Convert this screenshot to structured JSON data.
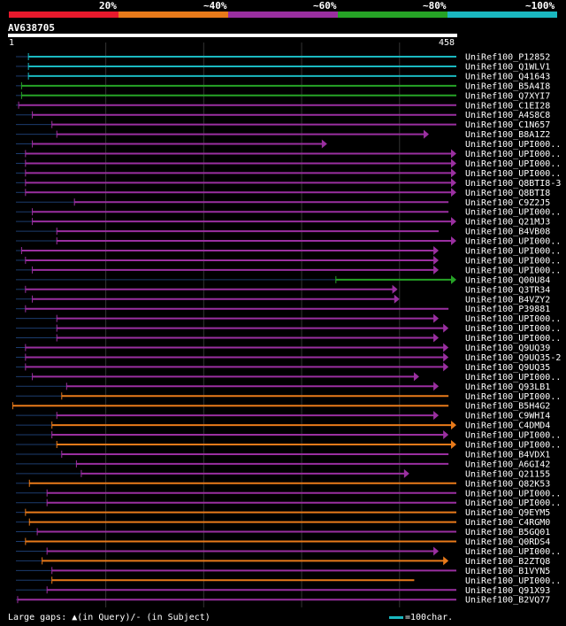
{
  "scale": {
    "labels": [
      "20%",
      "~40%",
      "~60%",
      "~80%",
      "~100%"
    ],
    "colors": [
      "#e8192c",
      "#e87a1a",
      "#9a2fa0",
      "#26a326",
      "#1ab8c0"
    ]
  },
  "query": {
    "name": "AV638705",
    "start": "1",
    "end": "458"
  },
  "footer": {
    "gaps_label": "Large gaps: ▲(in Query)/- (in Subject)",
    "legend_label": "=100char."
  },
  "chart_data": {
    "type": "alignment",
    "query_length": 458,
    "hits": [
      {
        "name": "UniRef100_P12852",
        "start": 21,
        "end": 458,
        "identity": "~100%",
        "arrow": false
      },
      {
        "name": "UniRef100_Q1WLV1",
        "start": 21,
        "end": 458,
        "identity": "~100%",
        "arrow": false
      },
      {
        "name": "UniRef100_Q41643",
        "start": 21,
        "end": 458,
        "identity": "~100%",
        "arrow": false
      },
      {
        "name": "UniRef100_B5A4I8",
        "start": 14,
        "end": 458,
        "identity": "~80%",
        "arrow": false
      },
      {
        "name": "UniRef100_Q7XYI7",
        "start": 14,
        "end": 458,
        "identity": "~80%",
        "arrow": false
      },
      {
        "name": "UniRef100_C1EI28",
        "start": 11,
        "end": 458,
        "identity": "~60%",
        "arrow": false
      },
      {
        "name": "UniRef100_A4S8C8",
        "start": 25,
        "end": 458,
        "identity": "~60%",
        "arrow": false
      },
      {
        "name": "UniRef100_C1N657",
        "start": 45,
        "end": 458,
        "identity": "~60%",
        "arrow": false
      },
      {
        "name": "UniRef100_B8A1Z2",
        "start": 50,
        "end": 430,
        "identity": "~60%",
        "arrow": true
      },
      {
        "name": "UniRef100_UPI000..",
        "start": 25,
        "end": 326,
        "identity": "~60%",
        "arrow": true
      },
      {
        "name": "UniRef100_UPI000..",
        "start": 18,
        "end": 458,
        "identity": "~60%",
        "arrow": true
      },
      {
        "name": "UniRef100_UPI000..",
        "start": 18,
        "end": 458,
        "identity": "~60%",
        "arrow": true
      },
      {
        "name": "UniRef100_UPI000..",
        "start": 18,
        "end": 458,
        "identity": "~60%",
        "arrow": true
      },
      {
        "name": "UniRef100_Q8BTI8-3",
        "start": 18,
        "end": 458,
        "identity": "~60%",
        "arrow": true
      },
      {
        "name": "UniRef100_Q8BTI8",
        "start": 18,
        "end": 458,
        "identity": "~60%",
        "arrow": true
      },
      {
        "name": "UniRef100_C9Z2J5",
        "start": 68,
        "end": 450,
        "identity": "~60%",
        "arrow": false
      },
      {
        "name": "UniRef100_UPI000..",
        "start": 25,
        "end": 450,
        "identity": "~60%",
        "arrow": false
      },
      {
        "name": "UniRef100_Q21MJ3",
        "start": 25,
        "end": 458,
        "identity": "~60%",
        "arrow": true
      },
      {
        "name": "UniRef100_B4VB08",
        "start": 50,
        "end": 440,
        "identity": "~60%",
        "arrow": false
      },
      {
        "name": "UniRef100_UPI000..",
        "start": 50,
        "end": 458,
        "identity": "~60%",
        "arrow": true
      },
      {
        "name": "UniRef100_UPI000..",
        "start": 14,
        "end": 440,
        "identity": "~60%",
        "arrow": true
      },
      {
        "name": "UniRef100_UPI000..",
        "start": 18,
        "end": 440,
        "identity": "~60%",
        "arrow": true
      },
      {
        "name": "UniRef100_UPI000..",
        "start": 25,
        "end": 440,
        "identity": "~60%",
        "arrow": true
      },
      {
        "name": "UniRef100_Q00U84",
        "start": 335,
        "end": 458,
        "identity": "~80%",
        "arrow": true
      },
      {
        "name": "UniRef100_Q3TR34",
        "start": 18,
        "end": 398,
        "identity": "~60%",
        "arrow": true
      },
      {
        "name": "UniRef100_B4VZY2",
        "start": 25,
        "end": 400,
        "identity": "~60%",
        "arrow": true
      },
      {
        "name": "UniRef100_P39881",
        "start": 18,
        "end": 450,
        "identity": "~60%",
        "arrow": false
      },
      {
        "name": "UniRef100_UPI000..",
        "start": 50,
        "end": 440,
        "identity": "~60%",
        "arrow": true
      },
      {
        "name": "UniRef100_UPI000..",
        "start": 50,
        "end": 450,
        "identity": "~60%",
        "arrow": true
      },
      {
        "name": "UniRef100_UPI000..",
        "start": 50,
        "end": 440,
        "identity": "~60%",
        "arrow": true
      },
      {
        "name": "UniRef100_Q9UQ39",
        "start": 18,
        "end": 450,
        "identity": "~60%",
        "arrow": true
      },
      {
        "name": "UniRef100_Q9UQ35-2",
        "start": 18,
        "end": 450,
        "identity": "~60%",
        "arrow": true
      },
      {
        "name": "UniRef100_Q9UQ35",
        "start": 18,
        "end": 450,
        "identity": "~60%",
        "arrow": true
      },
      {
        "name": "UniRef100_UPI000..",
        "start": 25,
        "end": 420,
        "identity": "~60%",
        "arrow": true
      },
      {
        "name": "UniRef100_Q93LB1",
        "start": 60,
        "end": 440,
        "identity": "~60%",
        "arrow": true
      },
      {
        "name": "UniRef100_UPI000..",
        "start": 55,
        "end": 450,
        "identity": "~40%",
        "arrow": false
      },
      {
        "name": "UniRef100_B5H4G2",
        "start": 5,
        "end": 450,
        "identity": "~40%",
        "arrow": false
      },
      {
        "name": "UniRef100_C9WHI4",
        "start": 50,
        "end": 440,
        "identity": "~60%",
        "arrow": true
      },
      {
        "name": "UniRef100_C4DMD4",
        "start": 45,
        "end": 458,
        "identity": "~40%",
        "arrow": true
      },
      {
        "name": "UniRef100_UPI000..",
        "start": 45,
        "end": 450,
        "identity": "~60%",
        "arrow": true
      },
      {
        "name": "UniRef100_UPI000..",
        "start": 50,
        "end": 458,
        "identity": "~40%",
        "arrow": true
      },
      {
        "name": "UniRef100_B4VDX1",
        "start": 55,
        "end": 450,
        "identity": "~60%",
        "arrow": false
      },
      {
        "name": "UniRef100_A6GI42",
        "start": 70,
        "end": 450,
        "identity": "~60%",
        "arrow": false
      },
      {
        "name": "UniRef100_Q21155",
        "start": 75,
        "end": 410,
        "identity": "~60%",
        "arrow": true
      },
      {
        "name": "UniRef100_Q82K53",
        "start": 22,
        "end": 458,
        "identity": "~40%",
        "arrow": false
      },
      {
        "name": "UniRef100_UPI000..",
        "start": 40,
        "end": 458,
        "identity": "~60%",
        "arrow": false
      },
      {
        "name": "UniRef100_UPI000..",
        "start": 40,
        "end": 458,
        "identity": "~60%",
        "arrow": false
      },
      {
        "name": "UniRef100_Q9EYM5",
        "start": 18,
        "end": 458,
        "identity": "~40%",
        "arrow": false
      },
      {
        "name": "UniRef100_C4RGM0",
        "start": 22,
        "end": 458,
        "identity": "~40%",
        "arrow": false
      },
      {
        "name": "UniRef100_B5GQ01",
        "start": 30,
        "end": 458,
        "identity": "~60%",
        "arrow": false
      },
      {
        "name": "UniRef100_Q0RDS4",
        "start": 18,
        "end": 458,
        "identity": "~40%",
        "arrow": false
      },
      {
        "name": "UniRef100_UPI000..",
        "start": 40,
        "end": 440,
        "identity": "~60%",
        "arrow": true
      },
      {
        "name": "UniRef100_B2ZTQ8",
        "start": 35,
        "end": 450,
        "identity": "~40%",
        "arrow": true
      },
      {
        "name": "UniRef100_B1VYN5",
        "start": 45,
        "end": 458,
        "identity": "~60%",
        "arrow": false
      },
      {
        "name": "UniRef100_UPI000..",
        "start": 45,
        "end": 415,
        "identity": "~40%",
        "arrow": false
      },
      {
        "name": "UniRef100_Q91X93",
        "start": 40,
        "end": 458,
        "identity": "~60%",
        "arrow": false
      },
      {
        "name": "UniRef100_B2VQ77",
        "start": 10,
        "end": 458,
        "identity": "~60%",
        "arrow": false
      }
    ]
  }
}
